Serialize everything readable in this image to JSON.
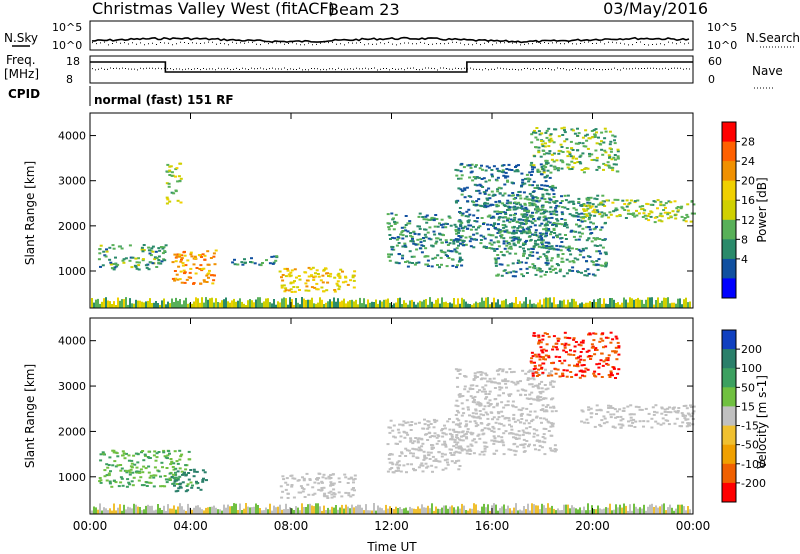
{
  "header": {
    "station": "Christmas Valley West (fitACF)",
    "beam": "Beam 23",
    "date": "03/May/2016"
  },
  "status_panels": {
    "nsky_label": "N.Sky",
    "nsearch_label": "N.Search",
    "freq_label_1": "Freq.",
    "freq_label_2": "[MHz]",
    "nave_label": "Nave",
    "cpid_label": "CPID",
    "cpid_text": "normal (fast) 151 RF",
    "noise_ticks": [
      "10^5",
      "10^0"
    ],
    "freq_ticks": [
      "18",
      "8"
    ],
    "nave_ticks": [
      "60",
      "0"
    ]
  },
  "chart_data": [
    {
      "type": "heatmap",
      "title": "",
      "parameter": "Power",
      "colorbar_label": "Power [dB]",
      "colorbar_ticks": [
        "28",
        "24",
        "20",
        "16",
        "12",
        "8",
        "4"
      ],
      "colorbar_colors": [
        "#ff0000",
        "#ff6000",
        "#f09000",
        "#f0d000",
        "#d0d000",
        "#58b058",
        "#2a8a6a",
        "#1050a0",
        "#0000ff"
      ],
      "xlabel": "Time UT",
      "ylabel": "Slant Range [km]",
      "x_ticks": [
        "00:00",
        "04:00",
        "08:00",
        "12:00",
        "16:00",
        "20:00",
        "00:00"
      ],
      "y_ticks": [
        "1000",
        "2000",
        "3000",
        "4000"
      ],
      "xlim": [
        0,
        24
      ],
      "ylim": [
        180,
        4500
      ],
      "regions": [
        {
          "t0": 3.2,
          "t1": 5.0,
          "r0": 720,
          "r1": 1480,
          "level": 24
        },
        {
          "t0": 0.3,
          "t1": 3.0,
          "r0": 1050,
          "r1": 1600,
          "level": 10
        },
        {
          "t0": 3.0,
          "t1": 3.6,
          "r0": 2500,
          "r1": 3400,
          "level": 14
        },
        {
          "t0": 7.5,
          "t1": 10.5,
          "r0": 550,
          "r1": 1100,
          "level": 20
        },
        {
          "t0": 5.5,
          "t1": 7.5,
          "r0": 1150,
          "r1": 1350,
          "level": 8
        },
        {
          "t0": 11.8,
          "t1": 14.8,
          "r0": 1100,
          "r1": 2300,
          "level": 9
        },
        {
          "t0": 14.5,
          "t1": 18.5,
          "r0": 1500,
          "r1": 3400,
          "level": 7
        },
        {
          "t0": 16.0,
          "t1": 20.5,
          "r0": 900,
          "r1": 2700,
          "level": 9
        },
        {
          "t0": 17.5,
          "t1": 21.0,
          "r0": 3200,
          "r1": 4200,
          "level": 12
        },
        {
          "t0": 19.5,
          "t1": 24.0,
          "r0": 2100,
          "r1": 2600,
          "level": 14
        }
      ]
    },
    {
      "type": "heatmap",
      "title": "",
      "parameter": "Velocity",
      "colorbar_label": "Velocity [m s-1]",
      "colorbar_ticks": [
        "200",
        "100",
        "50",
        "15",
        "-15",
        "-50",
        "-100",
        "-200"
      ],
      "colorbar_colors": [
        "#1040c0",
        "#2a7f6a",
        "#3ca060",
        "#70c040",
        "#c0c0c0",
        "#f0c030",
        "#f0a000",
        "#f06000",
        "#ff0000"
      ],
      "xlabel": "Time UT",
      "ylabel": "Slant Range [km]",
      "x_ticks": [
        "00:00",
        "04:00",
        "08:00",
        "12:00",
        "16:00",
        "20:00",
        "00:00"
      ],
      "y_ticks": [
        "1000",
        "2000",
        "3000",
        "4000"
      ],
      "xlim": [
        0,
        24
      ],
      "ylim": [
        180,
        4500
      ],
      "regions": [
        {
          "t0": 0.3,
          "t1": 4.0,
          "r0": 800,
          "r1": 1600,
          "level": 50
        },
        {
          "t0": 3.2,
          "t1": 4.6,
          "r0": 700,
          "r1": 1200,
          "level": 120
        },
        {
          "t0": 7.5,
          "t1": 10.5,
          "r0": 550,
          "r1": 1100,
          "level": 0
        },
        {
          "t0": 11.8,
          "t1": 14.8,
          "r0": 1100,
          "r1": 2300,
          "level": 0
        },
        {
          "t0": 14.5,
          "t1": 18.5,
          "r0": 1500,
          "r1": 3400,
          "level": 0
        },
        {
          "t0": 17.5,
          "t1": 21.0,
          "r0": 3200,
          "r1": 4200,
          "level": -200
        },
        {
          "t0": 19.5,
          "t1": 24.0,
          "r0": 2100,
          "r1": 2600,
          "level": 0
        }
      ]
    }
  ]
}
